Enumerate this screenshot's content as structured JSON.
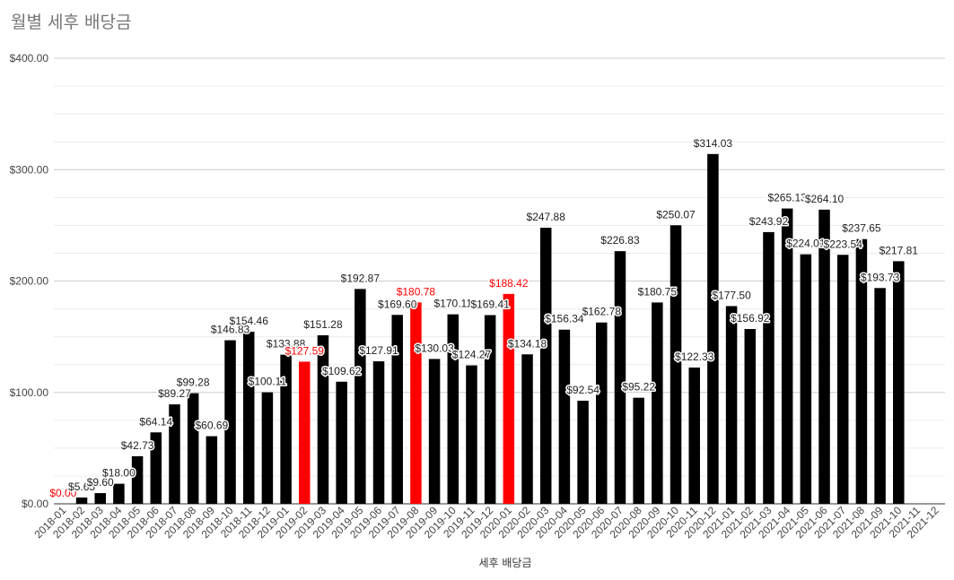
{
  "chart_data": {
    "type": "bar",
    "title": "월별 세후 배당금",
    "xlabel": "세후 배당금",
    "ylabel": "",
    "ylim": [
      0,
      400
    ],
    "yticks": [
      "$0.00",
      "$100.00",
      "$200.00",
      "$300.00",
      "$400.00"
    ],
    "grid": true,
    "colors": {
      "default": "#000000",
      "highlight": "#ff0000"
    },
    "categories": [
      "2018-01",
      "2018-02",
      "2018-03",
      "2018-04",
      "2018-05",
      "2018-06",
      "2018-07",
      "2018-08",
      "2018-09",
      "2018-10",
      "2018-11",
      "2018-12",
      "2019-01",
      "2019-02",
      "2019-03",
      "2019-04",
      "2019-05",
      "2019-06",
      "2019-07",
      "2019-08",
      "2019-09",
      "2019-10",
      "2019-11",
      "2019-12",
      "2020-01",
      "2020-02",
      "2020-03",
      "2020-04",
      "2020-05",
      "2020-06",
      "2020-07",
      "2020-08",
      "2020-09",
      "2020-10",
      "2020-11",
      "2020-12",
      "2021-01",
      "2021-02",
      "2021-03",
      "2021-04",
      "2021-05",
      "2021-06",
      "2021-07",
      "2021-08",
      "2021-09",
      "2021-10",
      "2021-11",
      "2021-12"
    ],
    "values": [
      0,
      5.65,
      9.6,
      18.0,
      42.73,
      64.14,
      89.27,
      99.28,
      60.69,
      146.83,
      154.46,
      100.11,
      133.88,
      127.59,
      151.28,
      109.62,
      192.87,
      127.91,
      169.6,
      180.78,
      130.03,
      170.11,
      124.27,
      169.41,
      188.42,
      134.18,
      247.88,
      156.34,
      92.54,
      162.78,
      226.83,
      95.22,
      180.75,
      250.07,
      122.33,
      314.03,
      177.5,
      156.92,
      243.92,
      265.13,
      224.01,
      264.1,
      223.54,
      237.65,
      193.73,
      217.81,
      null,
      null
    ],
    "labels": [
      "$0.00",
      "$5.65",
      "$9.60",
      "$18.00",
      "$42.73",
      "$64.14",
      "$89.27",
      "$99.28",
      "$60.69",
      "$146.83",
      "$154.46",
      "$100.11",
      "$133.88",
      "$127.59",
      "$151.28",
      "$109.62",
      "$192.87",
      "$127.91",
      "$169.60",
      "$180.78",
      "$130.03",
      "$170.11",
      "$124.27",
      "$169.41",
      "$188.42",
      "$134.18",
      "$247.88",
      "$156.34",
      "$92.54",
      "$162.78",
      "$226.83",
      "$95.22",
      "$180.75",
      "$250.07",
      "$122.33",
      "$314.03",
      "$177.50",
      "$156.92",
      "$243.92",
      "$265.13",
      "$224.01",
      "$264.10",
      "$223.54",
      "$237.65",
      "$193.73",
      "$217.81",
      "",
      ""
    ],
    "highlighted": [
      "2018-01",
      "2019-02",
      "2019-08",
      "2020-01"
    ]
  }
}
